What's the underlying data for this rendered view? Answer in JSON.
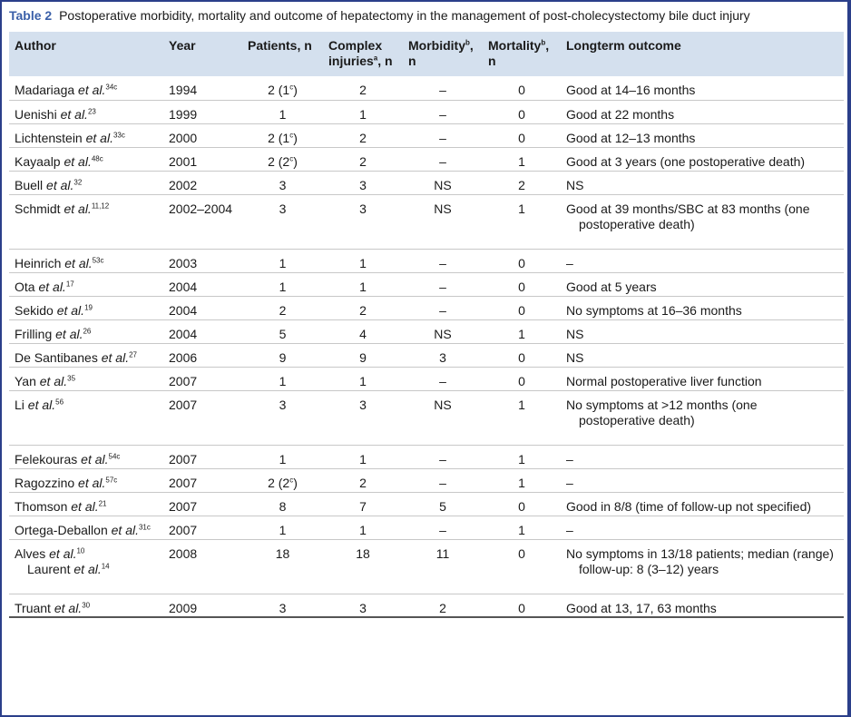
{
  "caption": {
    "label": "Table 2",
    "text": "Postoperative morbidity, mortality and outcome of hepatectomy in the management of post-cholecystectomy bile duct injury"
  },
  "headers": {
    "author": "Author",
    "year": "Year",
    "patients": "Patients, n",
    "complex_line1": "Complex",
    "complex_line2": "injuries",
    "complex_sup": "a",
    "complex_unit": ", n",
    "morbidity": "Morbidity",
    "morbidity_sup": "b",
    "morbidity_unit": ", n",
    "mortality": "Mortality",
    "mortality_sup": "b",
    "mortality_unit": ", n",
    "outcome": "Longterm outcome"
  },
  "rows": [
    {
      "author": "Madariaga",
      "etal": "et al.",
      "ref": "34c",
      "year": "1994",
      "patients": "2 (1",
      "patients_sup": "c",
      "patients_close": ")",
      "complex": "2",
      "morbidity": "–",
      "mortality": "0",
      "outcome": "Good at 14–16 months",
      "outcome2": ""
    },
    {
      "author": "Uenishi",
      "etal": "et al.",
      "ref": "23",
      "year": "1999",
      "patients": "1",
      "patients_sup": "",
      "patients_close": "",
      "complex": "1",
      "morbidity": "–",
      "mortality": "0",
      "outcome": "Good at 22 months",
      "outcome2": ""
    },
    {
      "author": "Lichtenstein",
      "etal": "et al.",
      "ref": "33c",
      "year": "2000",
      "patients": "2 (1",
      "patients_sup": "c",
      "patients_close": ")",
      "complex": "2",
      "morbidity": "–",
      "mortality": "0",
      "outcome": "Good at 12–13 months",
      "outcome2": ""
    },
    {
      "author": "Kayaalp",
      "etal": "et al.",
      "ref": "48c",
      "year": "2001",
      "patients": "2 (2",
      "patients_sup": "c",
      "patients_close": ")",
      "complex": "2",
      "morbidity": "–",
      "mortality": "1",
      "outcome": "Good at 3 years (one postoperative death)",
      "outcome2": ""
    },
    {
      "author": "Buell",
      "etal": "et al.",
      "ref": "32",
      "year": "2002",
      "patients": "3",
      "patients_sup": "",
      "patients_close": "",
      "complex": "3",
      "morbidity": "NS",
      "mortality": "2",
      "outcome": "NS",
      "outcome2": ""
    },
    {
      "author": "Schmidt",
      "etal": "et al.",
      "ref": "11,12",
      "year": "2002–2004",
      "patients": "3",
      "patients_sup": "",
      "patients_close": "",
      "complex": "3",
      "morbidity": "NS",
      "mortality": "1",
      "outcome": "Good at 39 months/SBC at 83 months (one",
      "outcome2": "postoperative death)"
    },
    {
      "author": "Heinrich",
      "etal": "et al.",
      "ref": "53c",
      "year": "2003",
      "patients": "1",
      "patients_sup": "",
      "patients_close": "",
      "complex": "1",
      "morbidity": "–",
      "mortality": "0",
      "outcome": "–",
      "outcome2": ""
    },
    {
      "author": "Ota",
      "etal": "et al.",
      "ref": "17",
      "year": "2004",
      "patients": "1",
      "patients_sup": "",
      "patients_close": "",
      "complex": "1",
      "morbidity": "–",
      "mortality": "0",
      "outcome": "Good at 5 years",
      "outcome2": ""
    },
    {
      "author": "Sekido",
      "etal": "et al.",
      "ref": "19",
      "year": "2004",
      "patients": "2",
      "patients_sup": "",
      "patients_close": "",
      "complex": "2",
      "morbidity": "–",
      "mortality": "0",
      "outcome": "No symptoms at 16–36 months",
      "outcome2": ""
    },
    {
      "author": "Frilling",
      "etal": "et al.",
      "ref": "26",
      "year": "2004",
      "patients": "5",
      "patients_sup": "",
      "patients_close": "",
      "complex": "4",
      "morbidity": "NS",
      "mortality": "1",
      "outcome": "NS",
      "outcome2": ""
    },
    {
      "author": "De Santibanes",
      "etal": "et al.",
      "ref": "27",
      "year": "2006",
      "patients": "9",
      "patients_sup": "",
      "patients_close": "",
      "complex": "9",
      "morbidity": "3",
      "mortality": "0",
      "outcome": "NS",
      "outcome2": ""
    },
    {
      "author": "Yan",
      "etal": "et al.",
      "ref": "35",
      "year": "2007",
      "patients": "1",
      "patients_sup": "",
      "patients_close": "",
      "complex": "1",
      "morbidity": "–",
      "mortality": "0",
      "outcome": "Normal postoperative liver function",
      "outcome2": ""
    },
    {
      "author": "Li",
      "etal": "et al.",
      "ref": "56",
      "year": "2007",
      "patients": "3",
      "patients_sup": "",
      "patients_close": "",
      "complex": "3",
      "morbidity": "NS",
      "mortality": "1",
      "outcome": "No symptoms at >12 months (one",
      "outcome2": "postoperative death)"
    },
    {
      "author": "Felekouras",
      "etal": "et al.",
      "ref": "54c",
      "year": "2007",
      "patients": "1",
      "patients_sup": "",
      "patients_close": "",
      "complex": "1",
      "morbidity": "–",
      "mortality": "1",
      "outcome": "–",
      "outcome2": ""
    },
    {
      "author": "Ragozzino",
      "etal": "et al.",
      "ref": "57c",
      "year": "2007",
      "patients": "2 (2",
      "patients_sup": "c",
      "patients_close": ")",
      "complex": "2",
      "morbidity": "–",
      "mortality": "1",
      "outcome": "–",
      "outcome2": ""
    },
    {
      "author": "Thomson",
      "etal": "et al.",
      "ref": "21",
      "year": "2007",
      "patients": "8",
      "patients_sup": "",
      "patients_close": "",
      "complex": "7",
      "morbidity": "5",
      "mortality": "0",
      "outcome": "Good in 8/8 (time of follow-up not specified)",
      "outcome2": ""
    },
    {
      "author": "Ortega-Deballon",
      "etal": "et al.",
      "ref": "31c",
      "year": "2007",
      "patients": "1",
      "patients_sup": "",
      "patients_close": "",
      "complex": "1",
      "morbidity": "–",
      "mortality": "1",
      "outcome": "–",
      "outcome2": ""
    },
    {
      "author": "Alves",
      "etal": "et al.",
      "ref": "10",
      "author2": "Laurent",
      "etal2": "et al.",
      "ref2": "14",
      "year": "2008",
      "patients": "18",
      "patients_sup": "",
      "patients_close": "",
      "complex": "18",
      "morbidity": "11",
      "mortality": "0",
      "outcome": "No symptoms in 13/18 patients; median (range)",
      "outcome2": "follow-up: 8 (3–12) years"
    },
    {
      "author": "Truant",
      "etal": "et al.",
      "ref": "30",
      "year": "2009",
      "patients": "3",
      "patients_sup": "",
      "patients_close": "",
      "complex": "3",
      "morbidity": "2",
      "mortality": "0",
      "outcome": "Good at 13, 17, 63 months",
      "outcome2": ""
    }
  ]
}
